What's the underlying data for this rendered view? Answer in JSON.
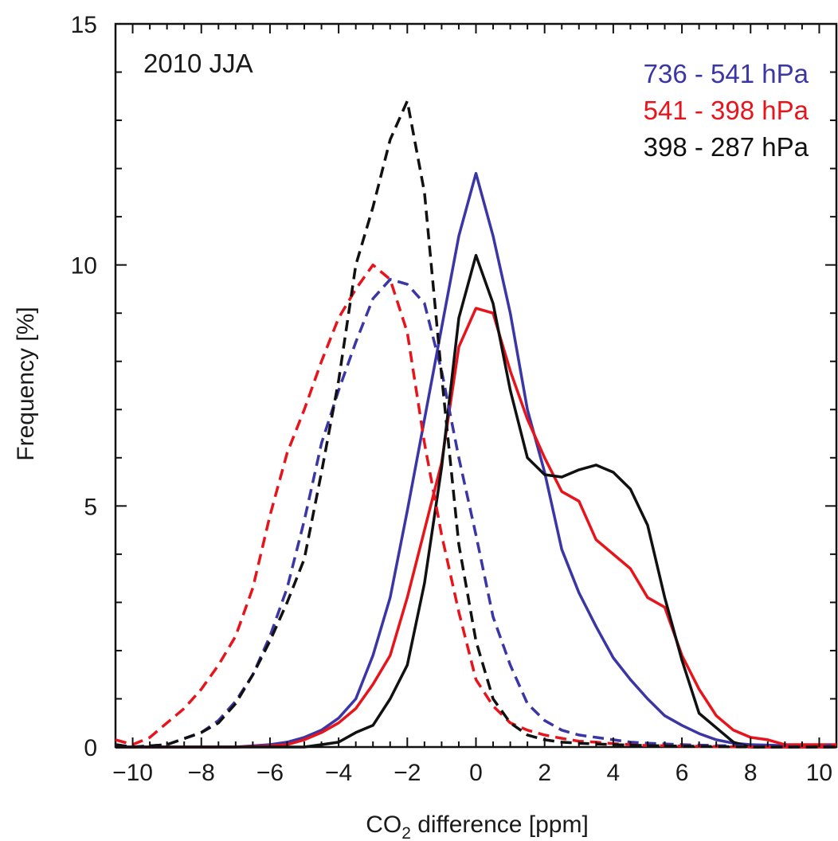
{
  "chart_data": {
    "type": "line",
    "annotation": "2010 JJA",
    "xlabel": {
      "prefix": "CO",
      "subscript": "2",
      "suffix": " difference [ppm]"
    },
    "ylabel": "Frequency [%]",
    "xlim": [
      -10.5,
      10.5
    ],
    "ylim": [
      0,
      15
    ],
    "xticks": [
      -10,
      -8,
      -6,
      -4,
      -2,
      0,
      2,
      4,
      6,
      8,
      10
    ],
    "xtick_labels": [
      "−10",
      "−8",
      "−6",
      "−4",
      "−2",
      "0",
      "2",
      "4",
      "6",
      "8",
      "10"
    ],
    "yticks": [
      0,
      5,
      10,
      15
    ],
    "ytick_labels": [
      "0",
      "5",
      "10",
      "15"
    ],
    "grid": false,
    "legend_position": "top-right",
    "series": [
      {
        "name": "736 - 541 hPa",
        "color": "#3b36a6",
        "dashed": false,
        "x": [
          -10.5,
          -10,
          -9,
          -8,
          -7,
          -6,
          -5.5,
          -5,
          -4.5,
          -4,
          -3.5,
          -3,
          -2.5,
          -2,
          -1.5,
          -1,
          -0.5,
          0,
          0.5,
          1,
          1.5,
          2,
          2.5,
          3,
          3.5,
          4,
          4.5,
          5,
          5.5,
          6,
          6.5,
          7,
          7.5,
          8,
          9,
          10,
          10.5
        ],
        "y": [
          0,
          0,
          0,
          0,
          0,
          0.05,
          0.1,
          0.2,
          0.35,
          0.6,
          1,
          1.9,
          3.1,
          4.9,
          6.8,
          8.7,
          10.6,
          11.9,
          10.6,
          9,
          7,
          5.7,
          4.1,
          3.2,
          2.5,
          1.85,
          1.4,
          1,
          0.65,
          0.45,
          0.28,
          0.15,
          0.08,
          0.05,
          0.03,
          0.02,
          0.02
        ]
      },
      {
        "name": "541 - 398 hPa",
        "color": "#e8141c",
        "dashed": false,
        "x": [
          -10.5,
          -10,
          -9,
          -8,
          -7,
          -6,
          -5.5,
          -5,
          -4.5,
          -4,
          -3.5,
          -3,
          -2.5,
          -2,
          -1.5,
          -1,
          -0.5,
          0,
          0.5,
          1,
          1.5,
          2,
          2.5,
          3,
          3.5,
          4,
          4.5,
          5,
          5.5,
          6,
          6.5,
          7,
          7.5,
          8,
          8.5,
          9,
          10,
          10.5
        ],
        "y": [
          0,
          0,
          0,
          0,
          0,
          0.02,
          0.05,
          0.15,
          0.3,
          0.5,
          0.8,
          1.3,
          1.9,
          3.1,
          4.5,
          5.9,
          8.3,
          9.1,
          9,
          7.8,
          6.8,
          6,
          5.3,
          5.1,
          4.3,
          4,
          3.7,
          3.1,
          2.9,
          1.9,
          1.2,
          0.65,
          0.35,
          0.2,
          0.15,
          0.05,
          0.05,
          0.05
        ]
      },
      {
        "name": "398 - 287 hPa",
        "color": "#111111",
        "dashed": false,
        "x": [
          -10.5,
          -10,
          -9,
          -8,
          -7,
          -6,
          -5,
          -4.5,
          -4,
          -3.5,
          -3,
          -2.5,
          -2,
          -1.5,
          -1,
          -0.5,
          0,
          0.5,
          1,
          1.5,
          2,
          2.5,
          3,
          3.5,
          4,
          4.5,
          5,
          5.5,
          6,
          6.5,
          7,
          7.5,
          8,
          9,
          10,
          10.5
        ],
        "y": [
          0,
          0,
          0,
          0,
          0,
          0,
          0,
          0.05,
          0.1,
          0.3,
          0.45,
          1,
          1.7,
          3.4,
          5.8,
          8.9,
          10.2,
          9.2,
          7.4,
          6,
          5.65,
          5.6,
          5.75,
          5.85,
          5.7,
          5.35,
          4.6,
          3.1,
          1.8,
          0.7,
          0.4,
          0.1,
          0,
          0,
          0,
          0
        ]
      },
      {
        "name": "",
        "color": "#3b36a6",
        "dashed": true,
        "x": [
          -10.5,
          -10,
          -9,
          -8,
          -7.5,
          -7,
          -6.5,
          -6,
          -5.5,
          -5,
          -4.5,
          -4,
          -3.5,
          -3,
          -2.5,
          -2,
          -1.5,
          -1,
          -0.5,
          0,
          0.5,
          1,
          1.5,
          2,
          2.5,
          3,
          3.5,
          4,
          4.5,
          5,
          6,
          7,
          8,
          9,
          10,
          10.5
        ],
        "y": [
          0.05,
          0,
          0.05,
          0.3,
          0.55,
          0.95,
          1.5,
          2.3,
          3.3,
          4.7,
          6.3,
          7.4,
          8.4,
          9.3,
          9.7,
          9.6,
          9.2,
          7.8,
          6,
          4.4,
          2.7,
          1.7,
          0.9,
          0.55,
          0.35,
          0.25,
          0.2,
          0.15,
          0.1,
          0.08,
          0.05,
          0.03,
          0.02,
          0.01,
          0,
          0.05
        ]
      },
      {
        "name": "",
        "color": "#e8141c",
        "dashed": true,
        "x": [
          -10.5,
          -10,
          -9.5,
          -9,
          -8.5,
          -8,
          -7.5,
          -7,
          -6.5,
          -6,
          -5.5,
          -5,
          -4.5,
          -4,
          -3.5,
          -3,
          -2.5,
          -2,
          -1.5,
          -1,
          -0.5,
          0,
          0.5,
          1,
          1.5,
          2,
          2.5,
          3,
          3.5,
          4,
          4.5,
          5,
          6,
          7,
          8,
          9,
          10,
          10.5
        ],
        "y": [
          0.15,
          0.05,
          0.2,
          0.5,
          0.8,
          1.2,
          1.7,
          2.3,
          3.3,
          4.8,
          6.1,
          7,
          8,
          8.9,
          9.5,
          10,
          9.7,
          8.6,
          6.3,
          4.4,
          2.8,
          1.4,
          0.85,
          0.5,
          0.35,
          0.25,
          0.18,
          0.12,
          0.1,
          0.07,
          0.05,
          0.03,
          0.02,
          0.01,
          0,
          0,
          0,
          0
        ]
      },
      {
        "name": "",
        "color": "#111111",
        "dashed": true,
        "x": [
          -10.5,
          -10,
          -9,
          -8,
          -7.5,
          -7,
          -6.5,
          -6,
          -5.5,
          -5,
          -4.5,
          -4,
          -3.5,
          -3,
          -2.5,
          -2,
          -1.5,
          -1,
          -0.5,
          0,
          0.5,
          1,
          1.5,
          2,
          2.5,
          3,
          4,
          5,
          6,
          7,
          8,
          9,
          10,
          10.5
        ],
        "y": [
          0.05,
          0,
          0.05,
          0.3,
          0.5,
          0.9,
          1.5,
          2.2,
          3,
          3.9,
          5.7,
          7.6,
          10,
          11.2,
          12.6,
          13.4,
          11.5,
          7.7,
          4.2,
          2.2,
          1,
          0.5,
          0.25,
          0.15,
          0.1,
          0.08,
          0.05,
          0.03,
          0.02,
          0.01,
          0,
          0,
          0,
          0
        ]
      }
    ]
  }
}
